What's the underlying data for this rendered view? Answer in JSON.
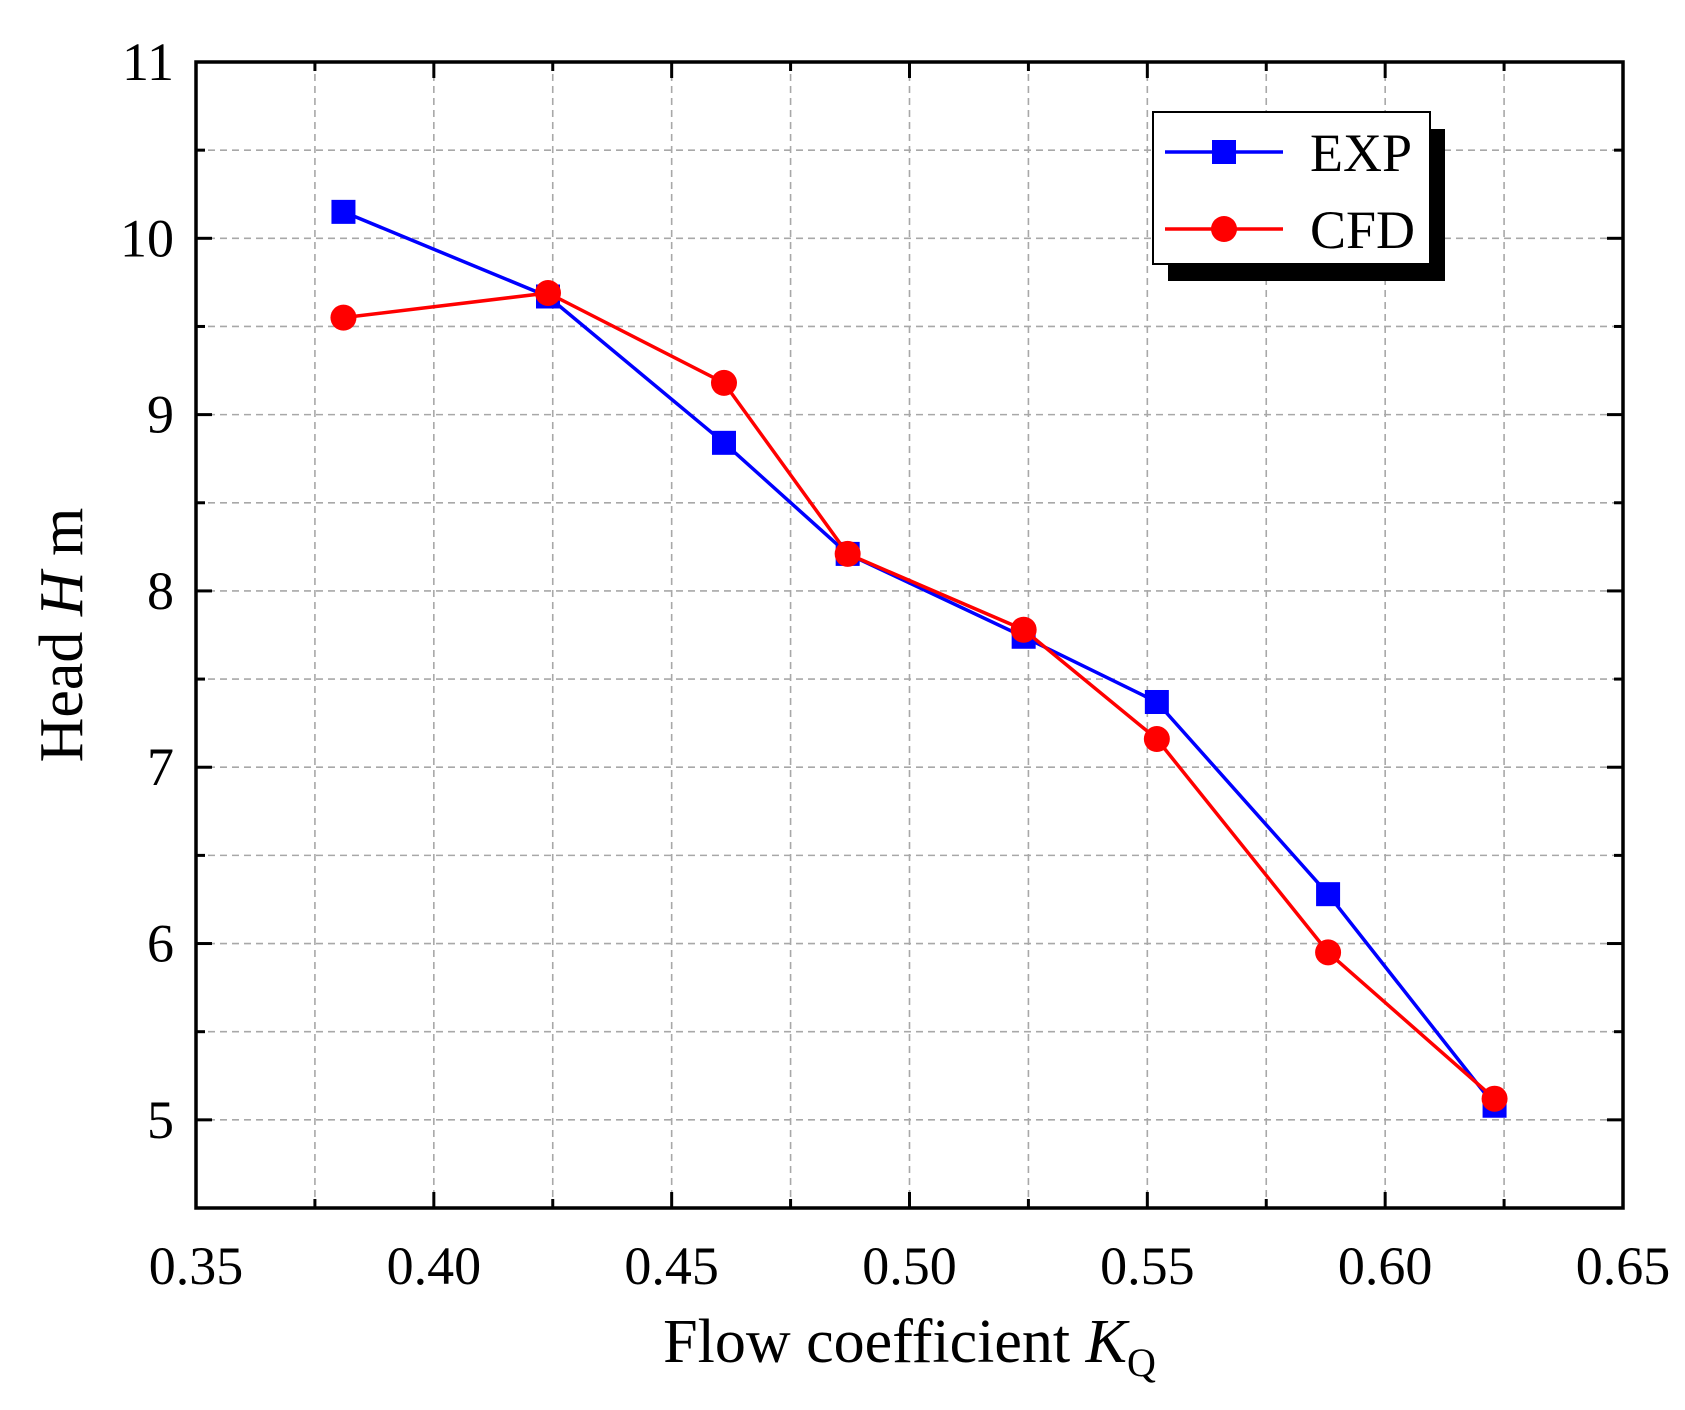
{
  "chart_data": {
    "type": "line",
    "title": "",
    "xlabel": {
      "prefix": "Flow coefficient ",
      "var": "K",
      "sub": "Q"
    },
    "ylabel": {
      "prefix": "Head ",
      "var": "H",
      "suffix": " m"
    },
    "xlim": [
      0.35,
      0.65
    ],
    "ylim": [
      4.5,
      11
    ],
    "xticks": [
      0.35,
      0.4,
      0.45,
      0.5,
      0.55,
      0.6,
      0.65
    ],
    "xtick_labels": [
      "0.35",
      "0.40",
      "0.45",
      "0.50",
      "0.55",
      "0.60",
      "0.65"
    ],
    "yticks": [
      5,
      6,
      7,
      8,
      9,
      10,
      11
    ],
    "ytick_labels": [
      "5",
      "6",
      "7",
      "8",
      "9",
      "10",
      "11"
    ],
    "grid": true,
    "legend_position": "top-right",
    "series": [
      {
        "name": "EXP",
        "color": "#0000ff",
        "marker": "square",
        "x": [
          0.381,
          0.424,
          0.461,
          0.487,
          0.524,
          0.552,
          0.588,
          0.623
        ],
        "y": [
          10.15,
          9.67,
          8.84,
          8.21,
          7.74,
          7.37,
          6.28,
          5.08
        ]
      },
      {
        "name": "CFD",
        "color": "#ff0000",
        "marker": "circle",
        "x": [
          0.381,
          0.424,
          0.461,
          0.487,
          0.524,
          0.552,
          0.588,
          0.623
        ],
        "y": [
          9.55,
          9.69,
          9.18,
          8.21,
          7.78,
          7.16,
          5.95,
          5.12
        ]
      }
    ]
  }
}
